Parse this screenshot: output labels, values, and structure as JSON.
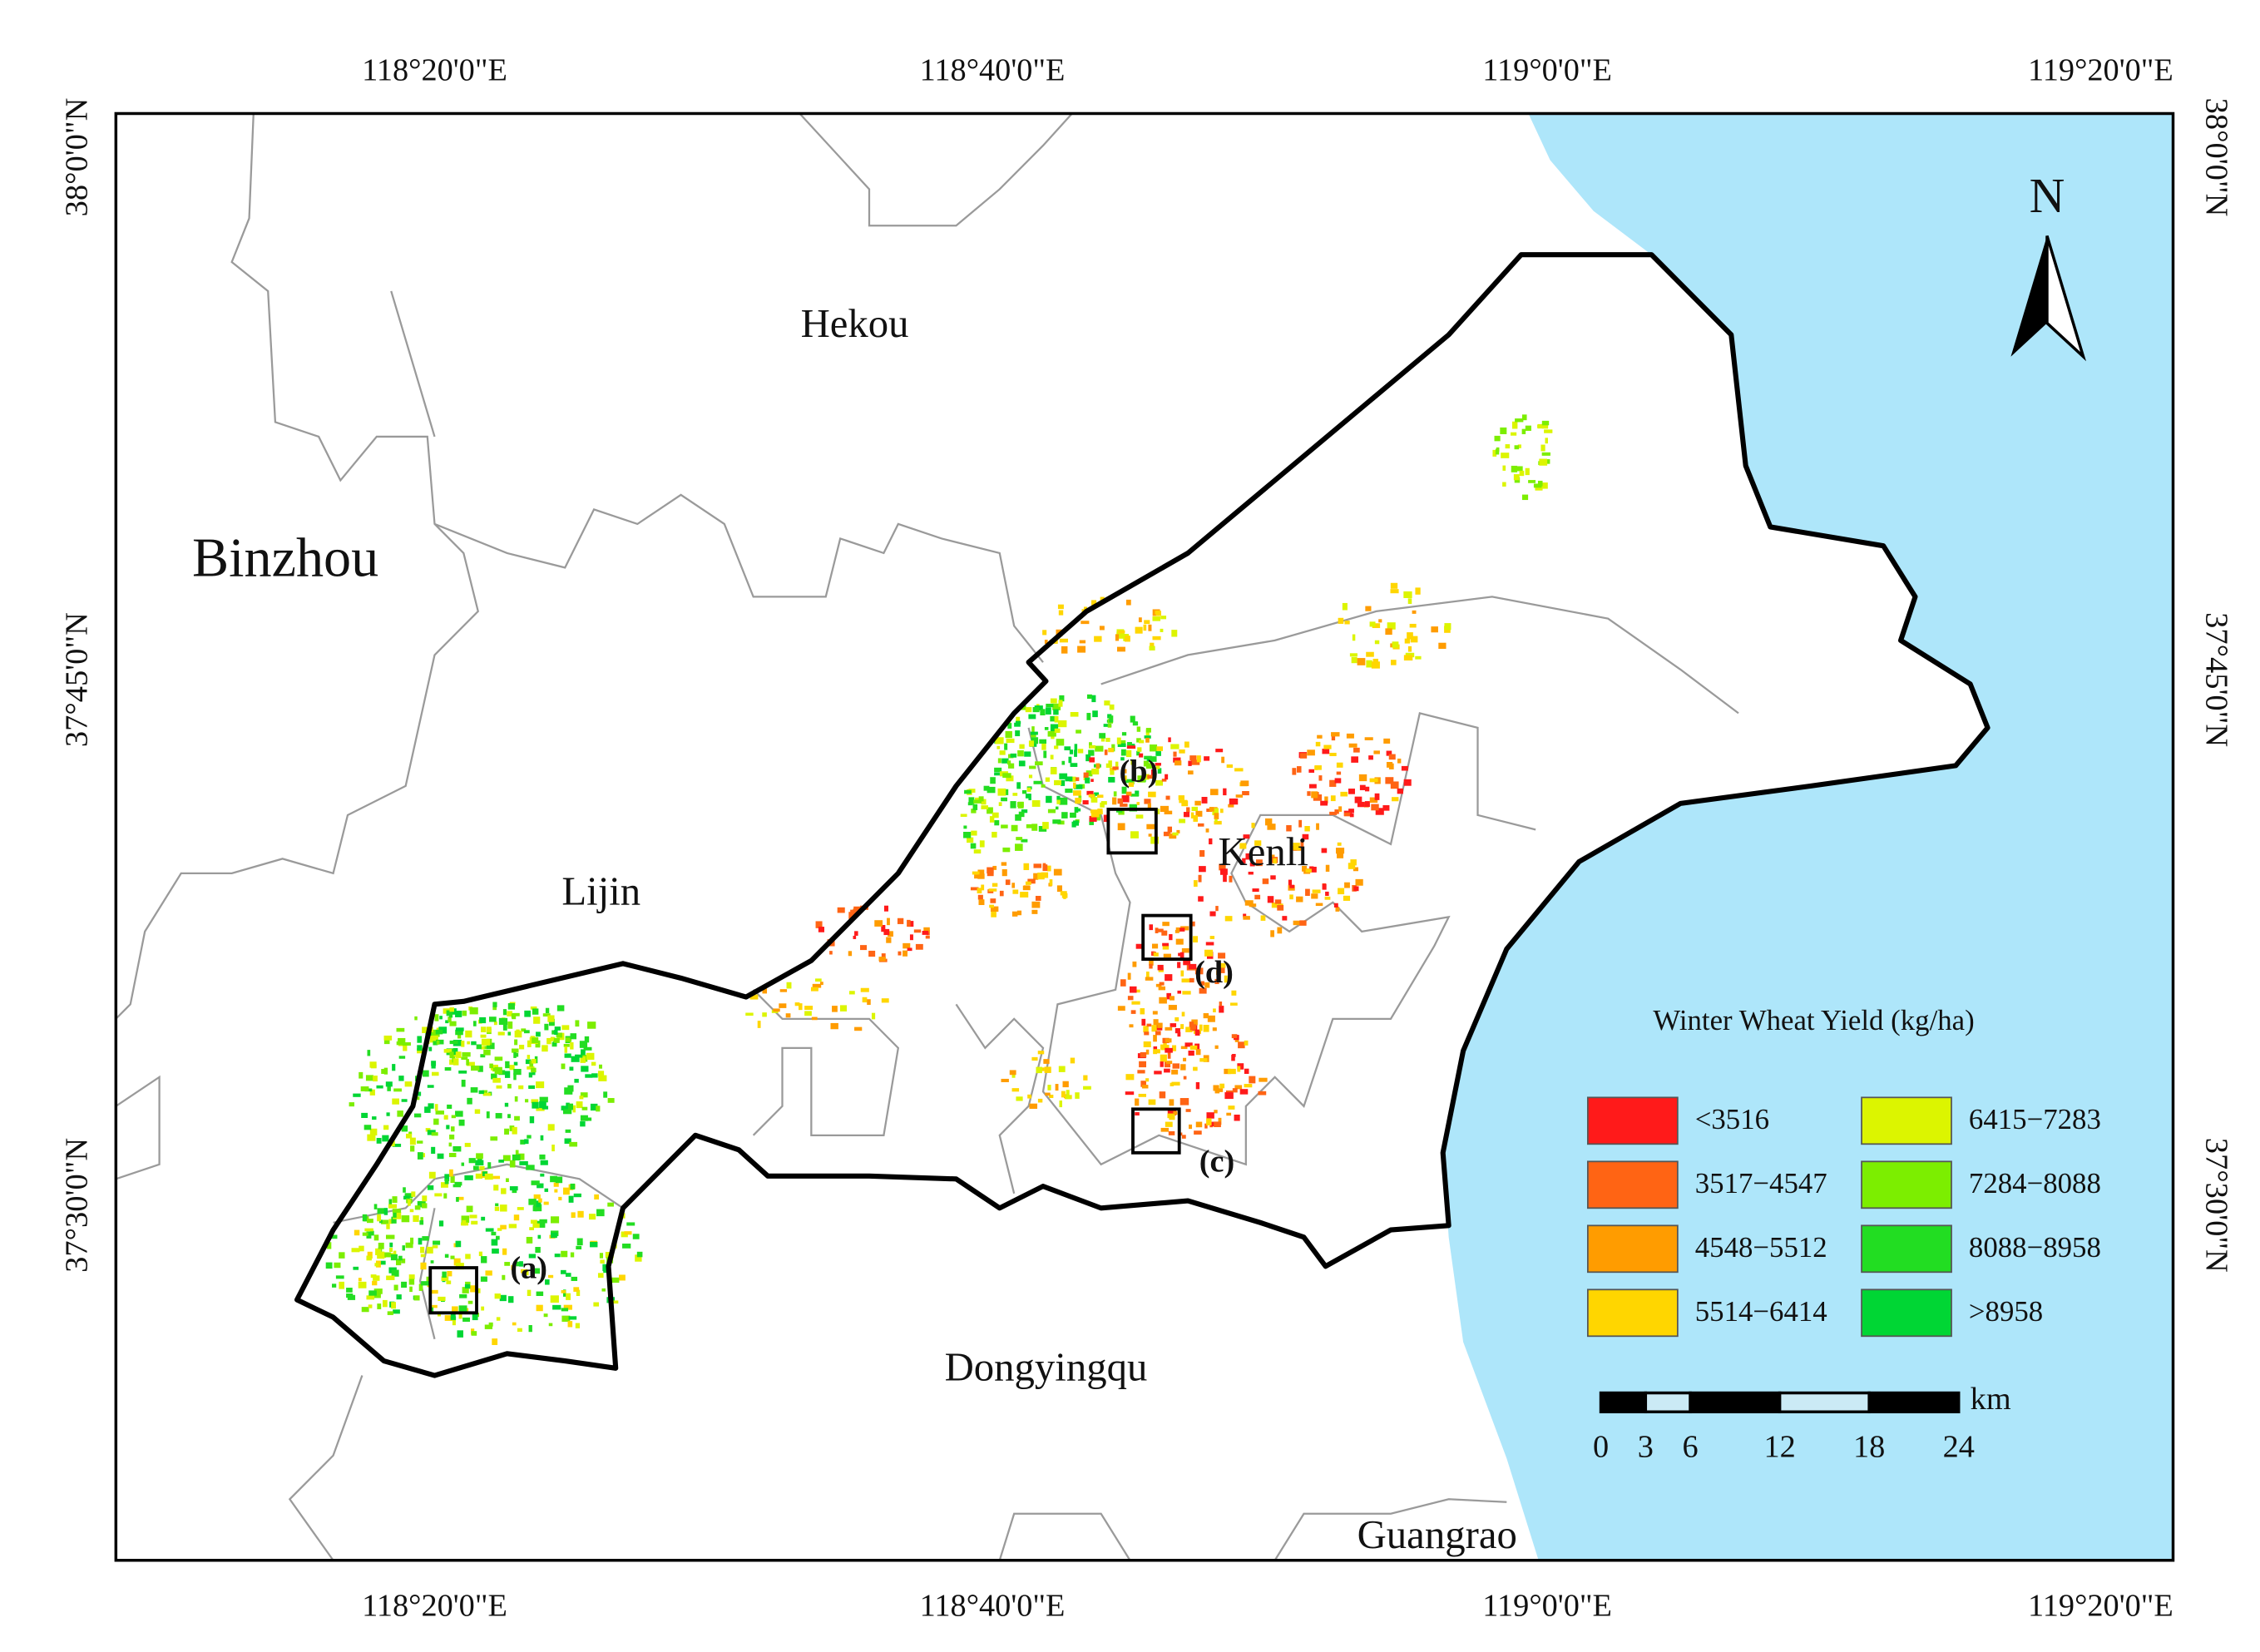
{
  "frame": {
    "top_labels": [
      "118°20'0\"E",
      "118°40'0\"E",
      "119°0'0\"E",
      "119°20'0\"E"
    ],
    "bottom_labels": [
      "118°20'0\"E",
      "118°40'0\"E",
      "119°0'0\"E",
      "119°20'0\"E"
    ],
    "left_labels": [
      "38°0'0\"N",
      "37°45'0\"N",
      "37°30'0\"N"
    ],
    "right_labels": [
      "38°0'0\"N",
      "37°45'0\"N",
      "37°30'0\"N"
    ]
  },
  "places": [
    {
      "label": "Hekou"
    },
    {
      "label": "Binzhou"
    },
    {
      "label": "Lijin"
    },
    {
      "label": "Kenli"
    },
    {
      "label": "Dongyingqu"
    },
    {
      "label": "Guangrao"
    }
  ],
  "sites": [
    {
      "label": "(a)"
    },
    {
      "label": "(b)"
    },
    {
      "label": "(c)"
    },
    {
      "label": "(d)"
    }
  ],
  "north": "N",
  "legend": {
    "title": "Winter Wheat Yield (kg/ha)",
    "classes": [
      {
        "label": "<3516",
        "color": "#ff1a1a"
      },
      {
        "label": "3517−4547",
        "color": "#ff6414"
      },
      {
        "label": "4548−5512",
        "color": "#ff9c00"
      },
      {
        "label": "5514−6414",
        "color": "#ffd600"
      },
      {
        "label": "6415−7283",
        "color": "#dcf500"
      },
      {
        "label": "7284−8088",
        "color": "#7cee00"
      },
      {
        "label": "8088−8958",
        "color": "#22dd22"
      },
      {
        "label": ">8958",
        "color": "#00d634"
      }
    ]
  },
  "scale_bar": {
    "ticks": [
      0,
      3,
      6,
      12,
      18,
      24
    ],
    "unit": "km"
  }
}
